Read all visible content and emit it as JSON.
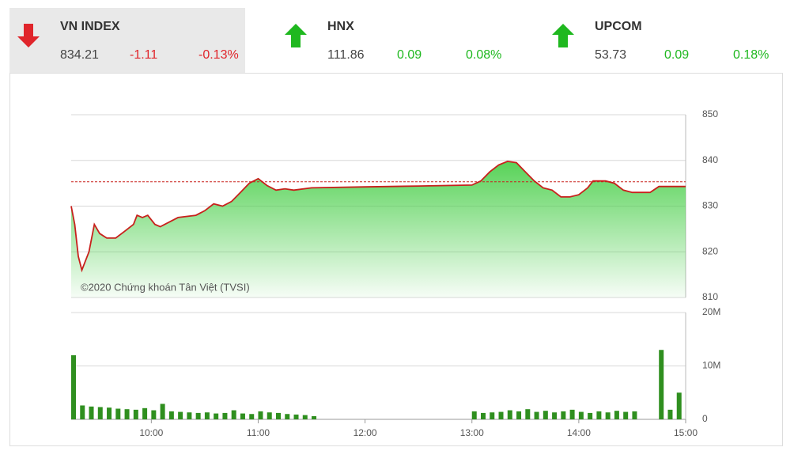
{
  "tickers": [
    {
      "name": "VN INDEX",
      "value": "834.21",
      "change": "-1.11",
      "percent": "-0.13%",
      "direction": "down",
      "color": "#e0252b"
    },
    {
      "name": "HNX",
      "value": "111.86",
      "change": "0.09",
      "percent": "0.08%",
      "direction": "up",
      "color": "#1fb81f"
    },
    {
      "name": "UPCOM",
      "value": "53.73",
      "change": "0.09",
      "percent": "0.18%",
      "direction": "up",
      "color": "#1fb81f"
    }
  ],
  "chart_data": [
    {
      "type": "area",
      "annotation": "©2020 Chứng khoán Tân Việt (TVSI)",
      "x": [
        "09:15",
        "09:17",
        "09:19",
        "09:21",
        "09:23",
        "09:25",
        "09:28",
        "09:31",
        "09:35",
        "09:40",
        "09:45",
        "09:50",
        "09:52",
        "09:55",
        "09:58",
        "10:02",
        "10:05",
        "10:10",
        "10:15",
        "10:25",
        "10:30",
        "10:35",
        "10:40",
        "10:45",
        "10:50",
        "10:55",
        "11:00",
        "11:05",
        "11:10",
        "11:15",
        "11:20",
        "11:30",
        "12:00",
        "12:30",
        "13:00",
        "13:05",
        "13:10",
        "13:15",
        "13:20",
        "13:25",
        "13:30",
        "13:35",
        "13:40",
        "13:45",
        "13:50",
        "13:55",
        "14:00",
        "14:05",
        "14:08",
        "14:15",
        "14:20",
        "14:25",
        "14:30",
        "14:40",
        "14:45",
        "14:50",
        "15:00"
      ],
      "values": [
        830,
        826,
        819,
        816,
        818,
        820,
        826,
        824,
        823,
        823,
        824.5,
        826,
        828,
        827.5,
        828,
        826,
        825.5,
        826.5,
        827.5,
        828,
        829,
        830.5,
        830,
        831,
        833,
        835,
        836,
        834.5,
        833.5,
        833.8,
        833.5,
        834,
        834.2,
        834.4,
        834.6,
        835.5,
        837.5,
        839,
        839.8,
        839.5,
        837.5,
        835.5,
        834,
        833.5,
        832,
        832,
        832.5,
        834,
        835.5,
        835.5,
        835,
        833.5,
        833,
        833,
        834.3,
        834.3,
        834.3
      ],
      "color": "#c8201c",
      "fill_color": "#4fd04f",
      "reference_line": 835.32,
      "reference_color": "#c8201c",
      "xlim": [
        "09:15",
        "15:00"
      ],
      "ylim": [
        810,
        850
      ],
      "yticks": [
        810,
        820,
        830,
        840,
        850
      ],
      "grid": true
    },
    {
      "type": "bar",
      "x": [
        "09:15",
        "09:20",
        "09:25",
        "09:30",
        "09:35",
        "09:40",
        "09:45",
        "09:50",
        "09:55",
        "10:00",
        "10:05",
        "10:10",
        "10:15",
        "10:20",
        "10:25",
        "10:30",
        "10:35",
        "10:40",
        "10:45",
        "10:50",
        "10:55",
        "11:00",
        "11:05",
        "11:10",
        "11:15",
        "11:20",
        "11:25",
        "11:30",
        "13:00",
        "13:05",
        "13:10",
        "13:15",
        "13:20",
        "13:25",
        "13:30",
        "13:35",
        "13:40",
        "13:45",
        "13:50",
        "13:55",
        "14:00",
        "14:05",
        "14:10",
        "14:15",
        "14:20",
        "14:25",
        "14:30",
        "14:45",
        "14:50",
        "14:55"
      ],
      "values": [
        12000000,
        2600000,
        2400000,
        2300000,
        2200000,
        2000000,
        1900000,
        1800000,
        2100000,
        1700000,
        2900000,
        1500000,
        1400000,
        1300000,
        1200000,
        1300000,
        1100000,
        1200000,
        1700000,
        1100000,
        1000000,
        1500000,
        1300000,
        1200000,
        1000000,
        900000,
        800000,
        600000,
        1500000,
        1200000,
        1300000,
        1400000,
        1700000,
        1500000,
        1900000,
        1400000,
        1600000,
        1300000,
        1500000,
        1800000,
        1400000,
        1200000,
        1500000,
        1300000,
        1600000,
        1400000,
        1500000,
        13000000,
        1800000,
        5000000
      ],
      "color": "#2f8f1f",
      "xlim": [
        "09:15",
        "15:00"
      ],
      "ylim": [
        0,
        20000000
      ],
      "yticks": [
        0,
        {
          "value": 10000000,
          "label": "10M"
        },
        {
          "value": 20000000,
          "label": "20M"
        }
      ],
      "xticks": [
        "10:00",
        "11:00",
        "12:00",
        "13:00",
        "14:00",
        "15:00"
      ],
      "grid": true
    }
  ]
}
